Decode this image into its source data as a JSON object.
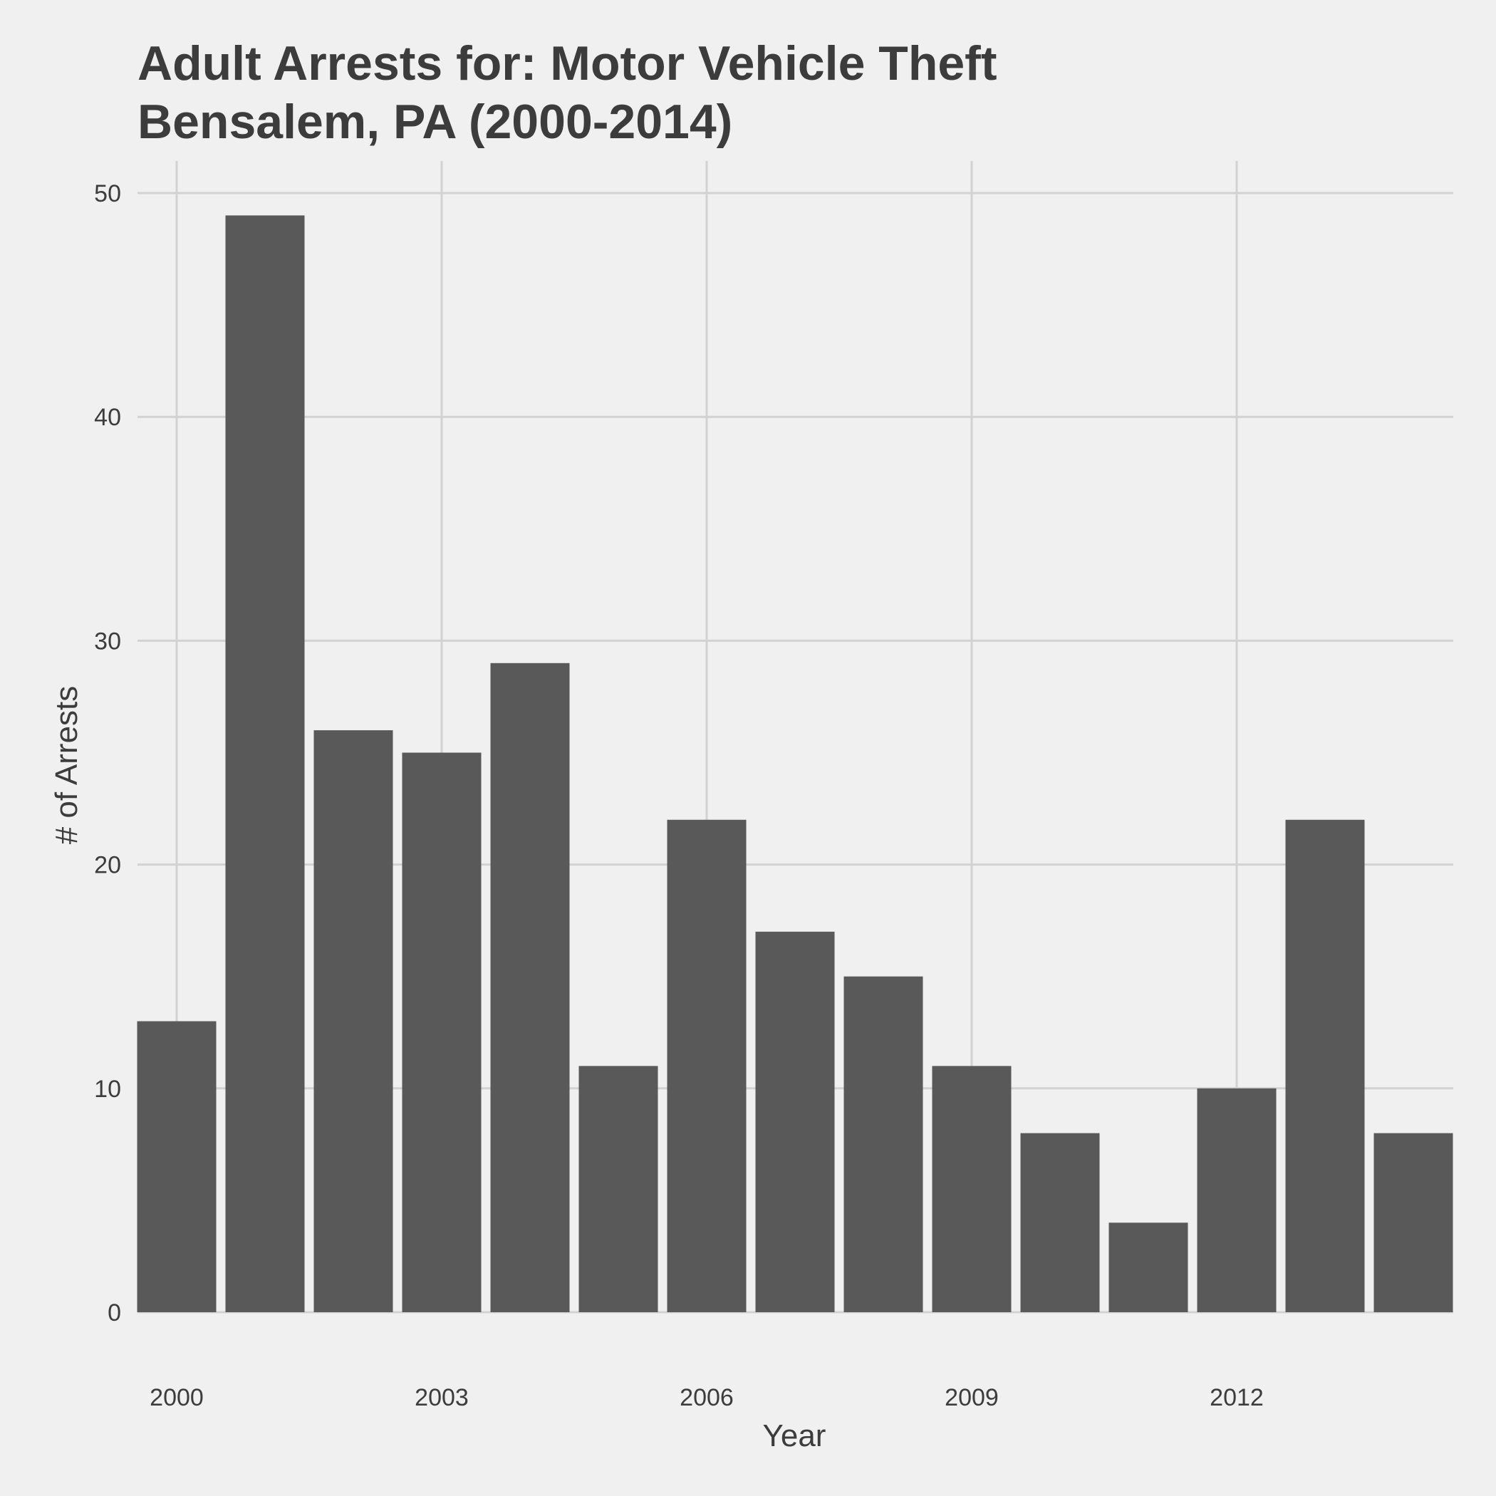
{
  "chart_data": {
    "type": "bar",
    "title": "Adult Arrests for: Motor Vehicle Theft",
    "subtitle": "Bensalem, PA (2000-2014)",
    "xlabel": "Year",
    "ylabel": "# of Arrests",
    "categories": [
      2000,
      2001,
      2002,
      2003,
      2004,
      2005,
      2006,
      2007,
      2008,
      2009,
      2010,
      2011,
      2012,
      2013,
      2014
    ],
    "values": [
      13,
      49,
      26,
      25,
      29,
      11,
      22,
      17,
      15,
      11,
      8,
      4,
      10,
      22,
      8
    ],
    "x_ticks": [
      2000,
      2003,
      2006,
      2009,
      2012
    ],
    "y_ticks": [
      0,
      10,
      20,
      30,
      40,
      50
    ],
    "ylim": [
      0,
      51.5
    ],
    "grid": true,
    "legend": "none",
    "colors": {
      "bar": "#595959",
      "grid": "#d2d2d2",
      "background": "#f0f0f0",
      "text": "#3c3c3c"
    }
  }
}
